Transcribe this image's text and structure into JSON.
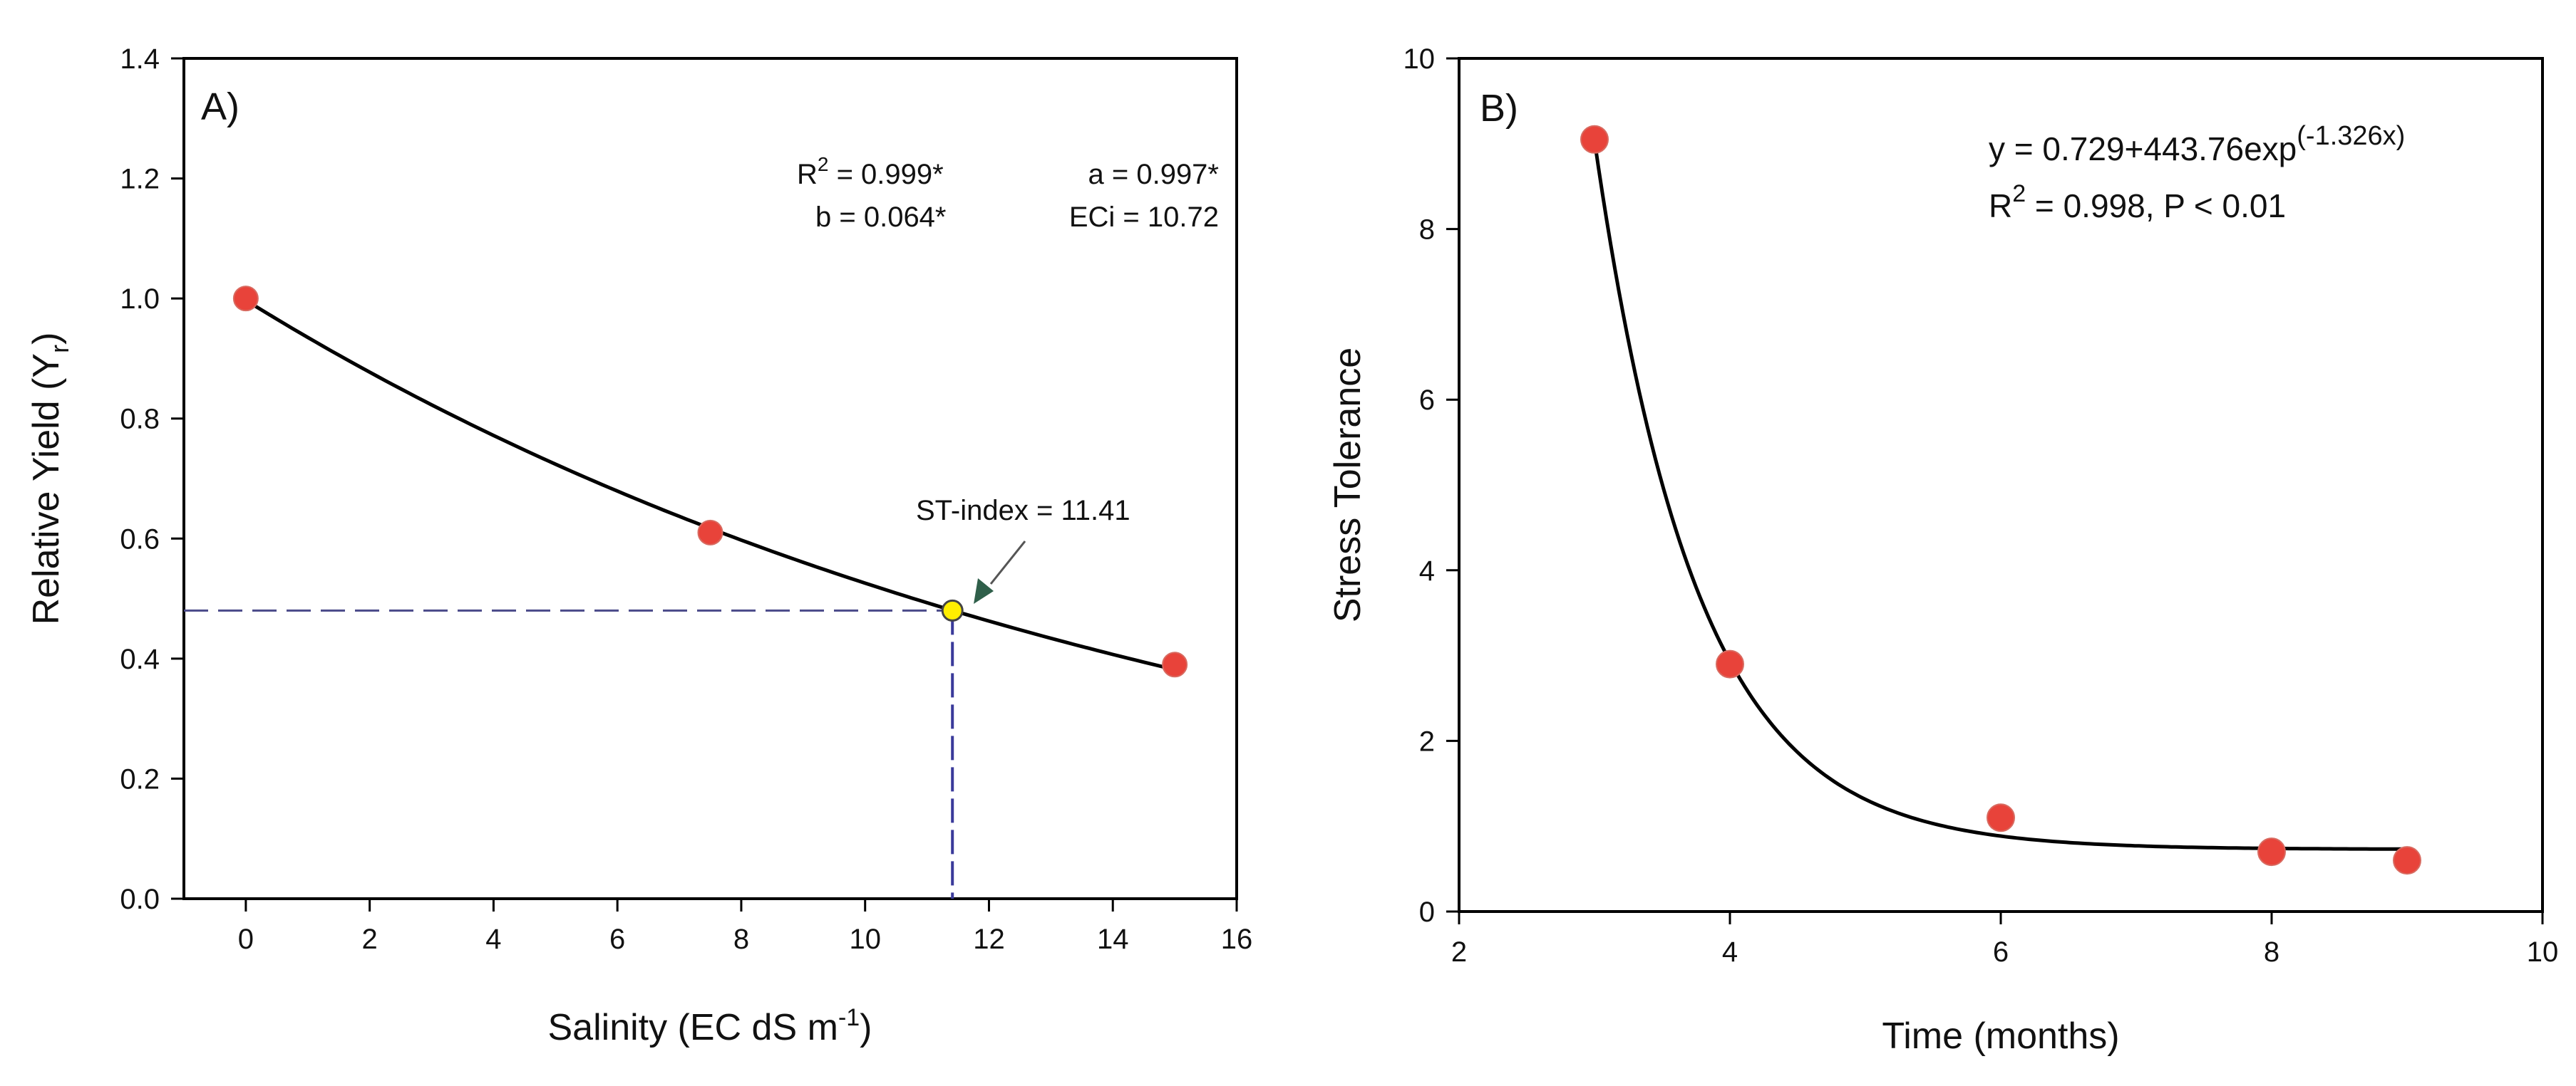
{
  "chart_data": [
    {
      "type": "scatter",
      "panel_label": "A)",
      "xlabel_main": "Salinity (EC dS m",
      "xlabel_sup": "-1",
      "xlabel_tail": ")",
      "ylabel_main": "Relative Yield (Y",
      "ylabel_sub": "r",
      "ylabel_tail": ")",
      "xlim": [
        -1,
        16
      ],
      "ylim": [
        0,
        1.4
      ],
      "xticks": [
        "0",
        "2",
        "4",
        "6",
        "8",
        "10",
        "12",
        "14",
        "16"
      ],
      "yticks": [
        "0.0",
        "0.2",
        "0.4",
        "0.6",
        "0.8",
        "1.0",
        "1.2",
        "1.4"
      ],
      "grid": false,
      "series": [
        {
          "name": "observed",
          "color": "#e8433a",
          "x": [
            0,
            7.5,
            15
          ],
          "y": [
            1.0,
            0.61,
            0.39
          ]
        }
      ],
      "fit": {
        "form": "exponential",
        "a": 0.997,
        "b": 0.064
      },
      "highlight_point": {
        "x": 11.41,
        "y": 0.48,
        "color": "#ffee00"
      },
      "annotations": {
        "r2_main": "R",
        "r2_sup": "2",
        "r2_value": " = 0.999*",
        "a_text": "a = 0.997*",
        "b_text": "b  = 0.064*",
        "eci_text": "ECi = 10.72",
        "st_index": "ST-index = 11.41"
      }
    },
    {
      "type": "scatter",
      "panel_label": "B)",
      "xlabel": "Time (months)",
      "ylabel": "Stress Tolerance",
      "xlim": [
        2,
        10
      ],
      "ylim": [
        0,
        10
      ],
      "xticks": [
        "2",
        "4",
        "6",
        "8",
        "10"
      ],
      "yticks": [
        "0",
        "2",
        "4",
        "6",
        "8",
        "10"
      ],
      "grid": false,
      "series": [
        {
          "name": "observed",
          "color": "#e8433a",
          "x": [
            3,
            4,
            6,
            8,
            9
          ],
          "y": [
            9.05,
            2.9,
            1.1,
            0.7,
            0.6
          ]
        }
      ],
      "fit": {
        "form": "exponential",
        "c": 0.729,
        "k": 443.76,
        "r": -1.326,
        "x_range": [
          3,
          9
        ]
      },
      "annotations": {
        "eq_main": "y = 0.729+443.76exp",
        "eq_sup": "(-1.326x)",
        "r2_main": "R",
        "r2_sup": "2",
        "r2_value": " = 0.998, P < 0.01"
      }
    }
  ]
}
